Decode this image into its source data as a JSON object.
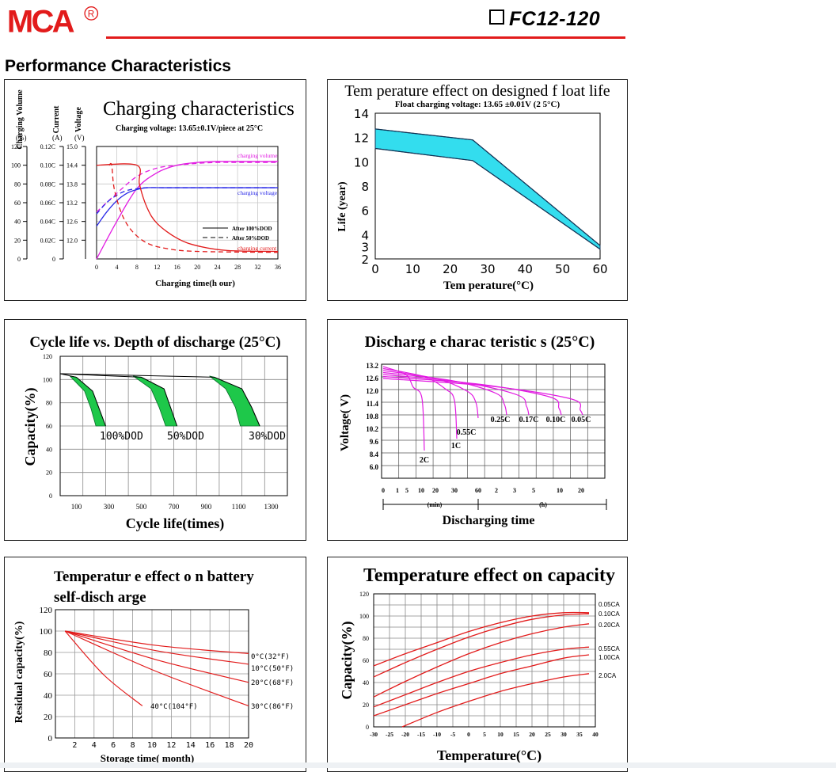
{
  "header": {
    "brand": "MCA",
    "registered": "R",
    "model": "FC12-120",
    "section_title": "Performance Characteristics",
    "accent_color": "#e21b1b"
  },
  "chart_data": [
    {
      "id": "charging",
      "type": "line",
      "title": "Charging characteristics",
      "subtitle": "Charging voltage:    13.65±0.1V/piece    at 25°C",
      "xlabel": "Charging time(h our)",
      "x_ticks": [
        "0",
        "4",
        "8",
        "12",
        "16",
        "20",
        "24",
        "28",
        "32",
        "36"
      ],
      "xlim": [
        0,
        36
      ],
      "axes": [
        {
          "label": "Charging Volume",
          "unit": "(%)",
          "ticks": [
            "120",
            "100",
            "80",
            "60",
            "40",
            "20",
            "0"
          ]
        },
        {
          "label": "Current",
          "unit": "(A)",
          "ticks": [
            "0.12C",
            "0.10C",
            "0.08C",
            "0.06C",
            "0.04C",
            "0.02C",
            "0"
          ]
        },
        {
          "label": "Voltage",
          "unit": "(V)",
          "ticks": [
            "15.0",
            "14.4",
            "13.8",
            "13.2",
            "12.6",
            "12.0",
            ""
          ]
        }
      ],
      "ylim_percent": [
        0,
        120
      ],
      "legend": {
        "solid": "After 100%DOD",
        "dashed": "After 50%DOD"
      },
      "annotations": {
        "volume": "charging volume",
        "voltage": "charging voltage",
        "current": "charging current"
      },
      "series": [
        {
          "name": "charging volume",
          "color": "#e21be2",
          "style": "solid",
          "x": [
            0,
            4,
            8,
            12,
            16,
            20,
            24,
            28,
            32,
            36
          ],
          "y": [
            0,
            40,
            75,
            92,
            100,
            103,
            104,
            104,
            104,
            104
          ]
        },
        {
          "name": "charging volume",
          "color": "#e21be2",
          "style": "dashed",
          "x": [
            0,
            4,
            8,
            12,
            16,
            20,
            24,
            28,
            32,
            36
          ],
          "y": [
            50,
            70,
            88,
            97,
            100,
            102,
            103,
            103,
            103,
            103
          ]
        },
        {
          "name": "charging voltage",
          "color": "#2a2ae8",
          "style": "solid",
          "x": [
            0,
            2,
            4,
            6,
            8,
            10,
            14,
            20,
            28,
            36
          ],
          "y": [
            35,
            50,
            62,
            70,
            74,
            76,
            76,
            76,
            76,
            76
          ]
        },
        {
          "name": "charging voltage",
          "color": "#2a2ae8",
          "style": "dashed",
          "x": [
            0,
            2,
            4,
            6,
            8,
            10,
            14,
            20,
            28,
            36
          ],
          "y": [
            48,
            60,
            68,
            73,
            75,
            76,
            76,
            76,
            76,
            76
          ]
        },
        {
          "name": "charging current",
          "color": "#e21b1b",
          "style": "solid",
          "x": [
            0,
            8,
            8.5,
            10,
            12,
            16,
            20,
            26,
            36
          ],
          "y": [
            100,
            100,
            80,
            55,
            38,
            22,
            14,
            9,
            8
          ]
        },
        {
          "name": "charging current",
          "color": "#e21b1b",
          "style": "dashed",
          "x": [
            2.5,
            3,
            3.5,
            5,
            7,
            10,
            14,
            20,
            36
          ],
          "y": [
            100,
            100,
            75,
            48,
            30,
            17,
            11,
            8,
            7
          ]
        }
      ]
    },
    {
      "id": "float_life",
      "type": "area",
      "title": "Tem perature effect on designed f loat life",
      "subtitle": "Float charging voltage: 13.65 ±0.01V (2 5°C)",
      "xlabel": "Tem perature(°C)",
      "ylabel": "Life (year)",
      "x_ticks": [
        "0",
        "10",
        "20",
        "30",
        "40",
        "50",
        "60"
      ],
      "y_ticks": [
        "14",
        "12",
        "10",
        "8",
        "6",
        "4",
        "3",
        "2"
      ],
      "xlim": [
        0,
        60
      ],
      "ylim": [
        2,
        14
      ],
      "fill_color": "#33ddee",
      "upper": {
        "x": [
          0,
          26,
          60
        ],
        "y": [
          12.7,
          11.8,
          3.1
        ]
      },
      "lower": {
        "x": [
          0,
          26,
          60
        ],
        "y": [
          11.1,
          10.1,
          2.8
        ]
      }
    },
    {
      "id": "cycle_life",
      "type": "area",
      "title": "Cycle life vs. Depth of discharge (25°C)",
      "xlabel": "Cycle life(times)",
      "ylabel": "Capacity(%)",
      "x_ticks": [
        "100",
        "300",
        "500",
        "700",
        "900",
        "1100",
        "1300"
      ],
      "y_ticks": [
        "120",
        "100",
        "80",
        "60",
        "40",
        "20",
        "0"
      ],
      "xlim": [
        0,
        1400
      ],
      "ylim": [
        0,
        120
      ],
      "fill_color": "#1ec84a",
      "bands": [
        {
          "label": "100%DOD",
          "outer": {
            "x": [
              0,
              100,
              200,
              240,
              280
            ],
            "y": [
              105,
              102,
              90,
              75,
              60
            ]
          },
          "inner": {
            "x": [
              60,
              150,
              190,
              220
            ],
            "y": [
              103,
              90,
              75,
              60
            ]
          }
        },
        {
          "label": "50%DOD",
          "outer": {
            "x": [
              0,
              500,
              640,
              680,
              720
            ],
            "y": [
              105,
              102,
              92,
              76,
              60
            ]
          },
          "inner": {
            "x": [
              450,
              560,
              610,
              650
            ],
            "y": [
              103,
              92,
              76,
              60
            ]
          }
        },
        {
          "label": "30%DOD",
          "outer": {
            "x": [
              0,
              950,
              1120,
              1180,
              1230
            ],
            "y": [
              105,
              102,
              92,
              76,
              60
            ]
          },
          "inner": {
            "x": [
              920,
              1020,
              1080,
              1110
            ],
            "y": [
              103,
              92,
              76,
              60
            ]
          }
        }
      ]
    },
    {
      "id": "discharge",
      "type": "line",
      "title": "Discharg e charac teristic s (25°C)",
      "xlabel": "Discharging time",
      "ylabel": "Voltage( V)",
      "x_ticks": [
        "0",
        "1",
        "5",
        "10",
        "20",
        "30",
        "60",
        "2",
        "3",
        "5",
        "10",
        "20"
      ],
      "x_groups": [
        "(min)",
        "(h)"
      ],
      "y_ticks": [
        "13.2",
        "12.6",
        "12.0",
        "11.4",
        "10.8",
        "10.2",
        "9.6",
        "8.4",
        "6.0"
      ],
      "line_color": "#e21be2",
      "series": [
        {
          "name": "2C",
          "end_voltage": 8.4,
          "end_time": "10 min"
        },
        {
          "name": "1C",
          "end_voltage": 9.6,
          "end_time": "30 min"
        },
        {
          "name": "0.55C",
          "end_voltage": 10.2,
          "end_time": "60 min"
        },
        {
          "name": "0.25C",
          "end_voltage": 10.8,
          "end_time": "3 h"
        },
        {
          "name": "0.17C",
          "end_voltage": 10.8,
          "end_time": "5 h"
        },
        {
          "name": "0.10C",
          "end_voltage": 10.8,
          "end_time": "10 h"
        },
        {
          "name": "0.05C",
          "end_voltage": 10.8,
          "end_time": "20 h"
        }
      ]
    },
    {
      "id": "self_discharge",
      "type": "line",
      "title": "Temperatur e effect o n battery",
      "title2": "self-disch arge",
      "xlabel": "Storage time( month)",
      "ylabel": "Residual capacity(%)",
      "x_ticks": [
        "2",
        "4",
        "6",
        "8",
        "10",
        "12",
        "14",
        "16",
        "18",
        "20"
      ],
      "y_ticks": [
        "120",
        "100",
        "80",
        "60",
        "40",
        "20",
        "0"
      ],
      "xlim": [
        0,
        20
      ],
      "ylim": [
        0,
        120
      ],
      "line_color": "#e21b1b",
      "series": [
        {
          "name": "0°C(32°F)",
          "x": [
            1,
            20
          ],
          "y": [
            100,
            79
          ]
        },
        {
          "name": "10°C(50°F)",
          "x": [
            1,
            20
          ],
          "y": [
            100,
            69
          ]
        },
        {
          "name": "20°C(68°F)",
          "x": [
            1,
            20
          ],
          "y": [
            100,
            52
          ]
        },
        {
          "name": "30°C(86°F)",
          "x": [
            1,
            20
          ],
          "y": [
            100,
            30
          ]
        },
        {
          "name": "40°C(104°F)",
          "x": [
            1,
            9
          ],
          "y": [
            100,
            30
          ]
        }
      ]
    },
    {
      "id": "temp_capacity",
      "type": "line",
      "title": "Temperature effect on capacity",
      "xlabel": "Temperature(°C)",
      "ylabel": "Capacity(%)",
      "x_ticks": [
        "-30",
        "-25",
        "-20",
        "-15",
        "-10",
        "-5",
        "0",
        "5",
        "10",
        "15",
        "20",
        "25",
        "30",
        "35",
        "40"
      ],
      "y_ticks": [
        "120",
        "100",
        "80",
        "60",
        "40",
        "20",
        "0"
      ],
      "xlim": [
        -30,
        40
      ],
      "ylim": [
        0,
        120
      ],
      "line_color": "#e21b1b",
      "series": [
        {
          "name": "0.05CA",
          "x": [
            -30,
            -20,
            -10,
            0,
            10,
            20,
            30,
            38
          ],
          "y": [
            55,
            66,
            76,
            86,
            94,
            100,
            103,
            103
          ]
        },
        {
          "name": "0.10CA",
          "x": [
            -30,
            -20,
            -10,
            0,
            10,
            20,
            30,
            38
          ],
          "y": [
            45,
            58,
            70,
            81,
            90,
            97,
            101,
            102
          ]
        },
        {
          "name": "0.20CA",
          "x": [
            -30,
            -20,
            -10,
            0,
            10,
            20,
            30,
            38
          ],
          "y": [
            27,
            41,
            54,
            66,
            76,
            84,
            90,
            93
          ]
        },
        {
          "name": "0.55CA",
          "x": [
            -30,
            -20,
            -10,
            0,
            10,
            20,
            30,
            38
          ],
          "y": [
            18,
            29,
            40,
            50,
            58,
            65,
            70,
            72
          ]
        },
        {
          "name": "1.00CA",
          "x": [
            -30,
            -20,
            -10,
            0,
            10,
            20,
            30,
            38
          ],
          "y": [
            10,
            20,
            30,
            39,
            48,
            55,
            62,
            65
          ]
        },
        {
          "name": "2.0CA",
          "x": [
            -21,
            -10,
            0,
            10,
            20,
            30,
            38
          ],
          "y": [
            0,
            13,
            23,
            32,
            39,
            45,
            48
          ]
        }
      ]
    }
  ]
}
